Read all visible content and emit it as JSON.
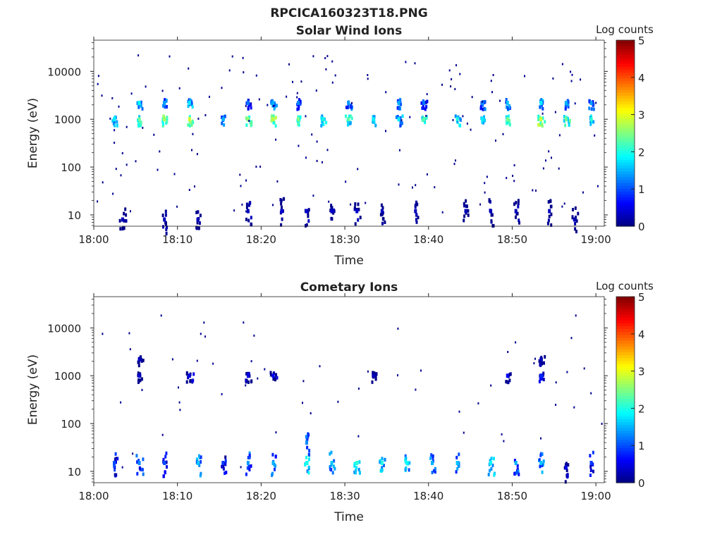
{
  "figure": {
    "title": "RPCICA160323T18.PNG"
  },
  "colorbar_scheme": "jet",
  "chart_data": [
    {
      "type": "heatmap",
      "title": "Solar Wind Ions",
      "xlabel": "Time",
      "ylabel": "Energy (eV)",
      "x_ticks": [
        "18:00",
        "18:10",
        "18:20",
        "18:30",
        "18:40",
        "18:50",
        "19:00"
      ],
      "x_range": [
        "18:00",
        "19:01"
      ],
      "y_scale": "log",
      "y_ticks": [
        "10",
        "100",
        "1000",
        "10000"
      ],
      "y_range": [
        5.8,
        45000
      ],
      "colorbar": {
        "label": "Log counts",
        "ticks": [
          "0",
          "1",
          "2",
          "3",
          "4",
          "5"
        ],
        "range": [
          0,
          5
        ]
      },
      "bursts": [
        {
          "t": "18:02",
          "e": 1000,
          "v": 1.8
        },
        {
          "t": "18:05",
          "e": 1000,
          "v": 2.4
        },
        {
          "t": "18:05",
          "e": 2200,
          "v": 1.9
        },
        {
          "t": "18:08",
          "e": 1000,
          "v": 2.7
        },
        {
          "t": "18:08",
          "e": 2200,
          "v": 1.4
        },
        {
          "t": "18:11",
          "e": 1000,
          "v": 2.9
        },
        {
          "t": "18:11",
          "e": 2200,
          "v": 1.8
        },
        {
          "t": "18:15",
          "e": 1000,
          "v": 1.5
        },
        {
          "t": "18:18",
          "e": 1000,
          "v": 2.6
        },
        {
          "t": "18:18",
          "e": 2200,
          "v": 1.2
        },
        {
          "t": "18:21",
          "e": 1000,
          "v": 2.8
        },
        {
          "t": "18:21",
          "e": 2200,
          "v": 1.5
        },
        {
          "t": "18:24",
          "e": 1000,
          "v": 2.5
        },
        {
          "t": "18:24",
          "e": 2200,
          "v": 1.3
        },
        {
          "t": "18:27",
          "e": 1000,
          "v": 2.0
        },
        {
          "t": "18:30",
          "e": 1000,
          "v": 2.3
        },
        {
          "t": "18:30",
          "e": 2200,
          "v": 1.4
        },
        {
          "t": "18:33",
          "e": 1000,
          "v": 1.8
        },
        {
          "t": "18:36",
          "e": 1000,
          "v": 1.8
        },
        {
          "t": "18:36",
          "e": 2200,
          "v": 1.5
        },
        {
          "t": "18:39",
          "e": 1000,
          "v": 2.3
        },
        {
          "t": "18:39",
          "e": 2200,
          "v": 1.2
        },
        {
          "t": "18:43",
          "e": 1000,
          "v": 2.0
        },
        {
          "t": "18:46",
          "e": 1000,
          "v": 1.8
        },
        {
          "t": "18:46",
          "e": 2200,
          "v": 1.3
        },
        {
          "t": "18:49",
          "e": 1000,
          "v": 2.5
        },
        {
          "t": "18:49",
          "e": 2200,
          "v": 1.6
        },
        {
          "t": "18:53",
          "e": 1000,
          "v": 2.9
        },
        {
          "t": "18:53",
          "e": 2200,
          "v": 1.8
        },
        {
          "t": "18:56",
          "e": 1000,
          "v": 2.4
        },
        {
          "t": "18:56",
          "e": 2200,
          "v": 1.5
        },
        {
          "t": "18:59",
          "e": 1000,
          "v": 2.1
        },
        {
          "t": "18:59",
          "e": 2200,
          "v": 1.4
        },
        {
          "t": "18:03",
          "e": 8,
          "v": 0.3
        },
        {
          "t": "18:08",
          "e": 8,
          "v": 0.3
        },
        {
          "t": "18:12",
          "e": 8,
          "v": 0.3
        },
        {
          "t": "18:18",
          "e": 12,
          "v": 0.3
        },
        {
          "t": "18:22",
          "e": 12,
          "v": 0.4
        },
        {
          "t": "18:25",
          "e": 12,
          "v": 0.4
        },
        {
          "t": "18:28",
          "e": 12,
          "v": 0.4
        },
        {
          "t": "18:31",
          "e": 12,
          "v": 0.4
        },
        {
          "t": "18:34",
          "e": 12,
          "v": 0.3
        },
        {
          "t": "18:38",
          "e": 12,
          "v": 0.3
        },
        {
          "t": "18:44",
          "e": 12,
          "v": 0.3
        },
        {
          "t": "18:47",
          "e": 12,
          "v": 0.3
        },
        {
          "t": "18:50",
          "e": 12,
          "v": 0.3
        },
        {
          "t": "18:54",
          "e": 12,
          "v": 0.3
        },
        {
          "t": "18:57",
          "e": 8,
          "v": 0.3
        }
      ]
    },
    {
      "type": "heatmap",
      "title": "Cometary Ions",
      "xlabel": "Time",
      "ylabel": "Energy (eV)",
      "x_ticks": [
        "18:00",
        "18:10",
        "18:20",
        "18:30",
        "18:40",
        "18:50",
        "19:00"
      ],
      "x_range": [
        "18:00",
        "19:01"
      ],
      "y_scale": "log",
      "y_ticks": [
        "10",
        "100",
        "1000",
        "10000"
      ],
      "y_range": [
        5.8,
        45000
      ],
      "colorbar": {
        "label": "Log counts",
        "ticks": [
          "0",
          "1",
          "2",
          "3",
          "4",
          "5"
        ],
        "range": [
          0,
          5
        ]
      },
      "bursts": [
        {
          "t": "18:05",
          "e": 1000,
          "v": 0.4
        },
        {
          "t": "18:05",
          "e": 2200,
          "v": 0.3
        },
        {
          "t": "18:11",
          "e": 1000,
          "v": 0.5
        },
        {
          "t": "18:18",
          "e": 1000,
          "v": 0.5
        },
        {
          "t": "18:21",
          "e": 1000,
          "v": 0.6
        },
        {
          "t": "18:33",
          "e": 1000,
          "v": 0.3
        },
        {
          "t": "18:49",
          "e": 1000,
          "v": 0.6
        },
        {
          "t": "18:53",
          "e": 1000,
          "v": 0.8
        },
        {
          "t": "18:53",
          "e": 2200,
          "v": 0.3
        },
        {
          "t": "18:02",
          "e": 15,
          "v": 1.0
        },
        {
          "t": "18:05",
          "e": 15,
          "v": 1.3
        },
        {
          "t": "18:08",
          "e": 15,
          "v": 1.0
        },
        {
          "t": "18:12",
          "e": 15,
          "v": 1.6
        },
        {
          "t": "18:15",
          "e": 15,
          "v": 0.9
        },
        {
          "t": "18:18",
          "e": 15,
          "v": 1.4
        },
        {
          "t": "18:21",
          "e": 15,
          "v": 1.5
        },
        {
          "t": "18:25",
          "e": 15,
          "v": 2.0
        },
        {
          "t": "18:25",
          "e": 40,
          "v": 1.3
        },
        {
          "t": "18:28",
          "e": 15,
          "v": 1.6
        },
        {
          "t": "18:31",
          "e": 15,
          "v": 2.1
        },
        {
          "t": "18:34",
          "e": 15,
          "v": 2.0
        },
        {
          "t": "18:37",
          "e": 15,
          "v": 1.9
        },
        {
          "t": "18:40",
          "e": 15,
          "v": 1.5
        },
        {
          "t": "18:43",
          "e": 15,
          "v": 1.6
        },
        {
          "t": "18:47",
          "e": 15,
          "v": 1.9
        },
        {
          "t": "18:50",
          "e": 15,
          "v": 1.5
        },
        {
          "t": "18:53",
          "e": 15,
          "v": 1.6
        },
        {
          "t": "18:56",
          "e": 12,
          "v": 0.5
        },
        {
          "t": "18:59",
          "e": 15,
          "v": 0.9
        }
      ]
    }
  ]
}
